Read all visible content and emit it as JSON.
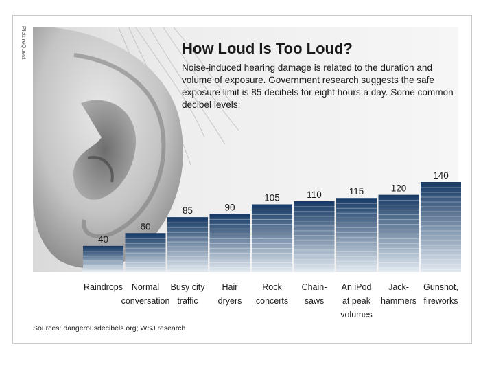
{
  "credit": "PictureQuest",
  "source": "Sources: dangerousdecibels.org; WSJ research",
  "colors": {
    "bar_top": "#173b66",
    "bar_bottom": "#e2e9f0",
    "stripe": "#ffffff",
    "label": "#1a1a1a"
  },
  "chart_data": {
    "type": "bar",
    "title": "How Loud Is Too Loud?",
    "subtitle": "Noise-induced hearing damage is related to the duration and volume of exposure. Government research suggests the safe exposure limit is 85 decibels for eight hours a day. Some common decibel levels:",
    "xlabel": "",
    "ylabel": "",
    "categories": [
      "Raindrops",
      "Normal\nconversation",
      "Busy city\ntraffic",
      "Hair\ndryers",
      "Rock\nconcerts",
      "Chain-\nsaws",
      "An iPod\nat peak\nvolumes",
      "Jack-\nhammers",
      "Gunshot,\nfireworks"
    ],
    "values": [
      40,
      60,
      85,
      90,
      105,
      110,
      115,
      120,
      140
    ],
    "data_labels": [
      "40",
      "60",
      "85",
      "90",
      "105",
      "110",
      "115",
      "120",
      "140"
    ],
    "ylim": [
      0,
      140
    ],
    "grid": false,
    "legend": "none"
  }
}
